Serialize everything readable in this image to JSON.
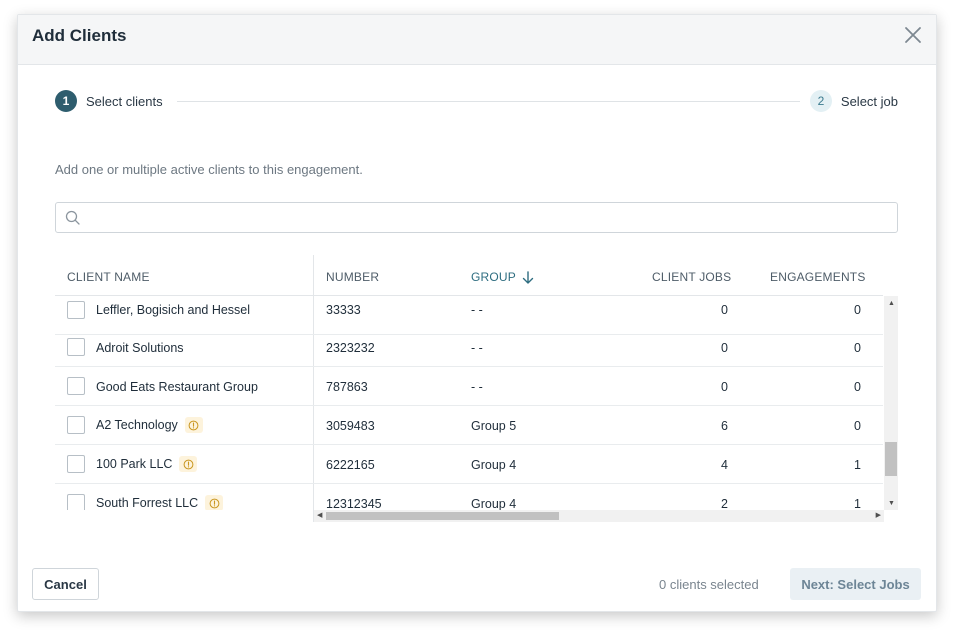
{
  "modal": {
    "title": "Add Clients"
  },
  "stepper": {
    "steps": [
      {
        "number": "1",
        "label": "Select clients"
      },
      {
        "number": "2",
        "label": "Select job"
      }
    ]
  },
  "description": "Add one or multiple active clients to this engagement.",
  "search": {
    "value": "",
    "placeholder": ""
  },
  "table": {
    "columns": [
      "CLIENT NAME",
      "NUMBER",
      "GROUP",
      "CLIENT JOBS",
      "ENGAGEMENTS"
    ],
    "sorted_column": "GROUP",
    "rows": [
      {
        "name": "Leffler, Bogisich and Hessel",
        "number": "33333",
        "group": "- -",
        "client_jobs": "0",
        "engagements": "0",
        "warning": false
      },
      {
        "name": "Adroit Solutions",
        "number": "2323232",
        "group": "- -",
        "client_jobs": "0",
        "engagements": "0",
        "warning": false
      },
      {
        "name": "Good Eats Restaurant Group",
        "number": "787863",
        "group": "- -",
        "client_jobs": "0",
        "engagements": "0",
        "warning": false
      },
      {
        "name": "A2 Technology",
        "number": "3059483",
        "group": "Group 5",
        "client_jobs": "6",
        "engagements": "0",
        "warning": true
      },
      {
        "name": "100 Park LLC",
        "number": "6222165",
        "group": "Group 4",
        "client_jobs": "4",
        "engagements": "1",
        "warning": true
      },
      {
        "name": "South Forrest LLC",
        "number": "12312345",
        "group": "Group 4",
        "client_jobs": "2",
        "engagements": "1",
        "warning": true
      }
    ]
  },
  "footer": {
    "cancel_label": "Cancel",
    "selected_text": "0 clients selected",
    "next_label": "Next: Select Jobs"
  },
  "colors": {
    "primary": "#2e5d6e",
    "warning_bg": "#fdf3dc",
    "warning_icon": "#c9961f"
  },
  "icons": {
    "close": "close-icon",
    "search": "search-icon",
    "sort": "arrow-down-icon",
    "warning": "info-circle-icon"
  }
}
